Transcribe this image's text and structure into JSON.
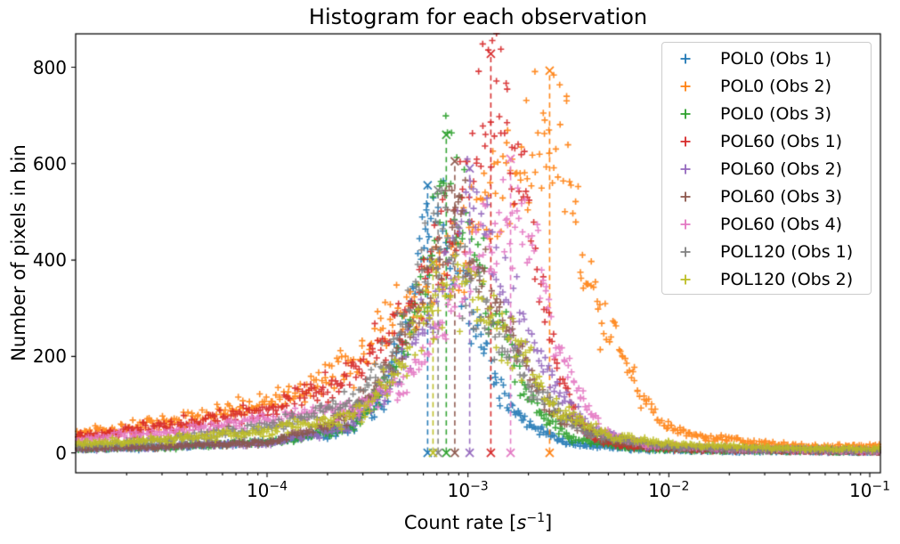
{
  "chart_data": {
    "type": "scatter",
    "title": "Histogram for each observation",
    "xlabel": "Count rate [s⁻¹]",
    "xlabel_parts": {
      "prefix": "Count rate [",
      "symbol": "s",
      "exponent": "−1",
      "suffix": "]"
    },
    "ylabel": "Number of pixels in bin",
    "x_scale": "log",
    "xlim": [
      1.115e-05,
      0.113
    ],
    "ylim": [
      -41.4,
      869.4
    ],
    "grid": false,
    "marker": "+",
    "legend_location": "upper right",
    "xticks": [
      {
        "base": "10",
        "exponent": "−4",
        "value": 0.0001
      },
      {
        "base": "10",
        "exponent": "−3",
        "value": 0.001
      },
      {
        "base": "10",
        "exponent": "−2",
        "value": 0.01
      },
      {
        "base": "10",
        "exponent": "−1",
        "value": 0.1
      }
    ],
    "yticks": [
      0,
      200,
      400,
      600,
      800
    ],
    "vline_note": "dashed vertical line per series marks the mode bin, with x markers at count 0 and at the peak bin count",
    "series": [
      {
        "name": "POL0 (Obs 1)",
        "color": "#1f77b4",
        "mode_count_rate": 0.00063,
        "peak_bin_count": 555,
        "envelope_log10x_vs_count": [
          [
            -4.95,
            8
          ],
          [
            -4.5,
            12
          ],
          [
            -4.0,
            22
          ],
          [
            -3.6,
            45
          ],
          [
            -3.42,
            110
          ],
          [
            -3.3,
            260
          ],
          [
            -3.21,
            500
          ],
          [
            -3.12,
            450
          ],
          [
            -3.0,
            330
          ],
          [
            -2.85,
            140
          ],
          [
            -2.7,
            55
          ],
          [
            -2.5,
            20
          ],
          [
            -2.2,
            8
          ],
          [
            -1.8,
            4
          ],
          [
            -0.95,
            2
          ]
        ]
      },
      {
        "name": "POL0 (Obs 2)",
        "color": "#ff7f0e",
        "mode_count_rate": 0.00255,
        "peak_bin_count": 793,
        "envelope_log10x_vs_count": [
          [
            -4.95,
            40
          ],
          [
            -4.5,
            62
          ],
          [
            -4.0,
            100
          ],
          [
            -3.55,
            195
          ],
          [
            -3.3,
            300
          ],
          [
            -3.0,
            430
          ],
          [
            -2.8,
            560
          ],
          [
            -2.62,
            645
          ],
          [
            -2.5,
            610
          ],
          [
            -2.44,
            400
          ],
          [
            -2.32,
            270
          ],
          [
            -2.23,
            190
          ],
          [
            -2.14,
            110
          ],
          [
            -2.05,
            70
          ],
          [
            -1.95,
            45
          ],
          [
            -1.85,
            32
          ],
          [
            -1.7,
            30
          ],
          [
            -1.55,
            20
          ],
          [
            -1.3,
            13
          ],
          [
            -0.95,
            13
          ]
        ]
      },
      {
        "name": "POL0 (Obs 3)",
        "color": "#2ca02c",
        "mode_count_rate": 0.00078,
        "peak_bin_count": 660,
        "envelope_log10x_vs_count": [
          [
            -4.95,
            8
          ],
          [
            -4.5,
            12
          ],
          [
            -4.0,
            22
          ],
          [
            -3.6,
            50
          ],
          [
            -3.4,
            140
          ],
          [
            -3.24,
            320
          ],
          [
            -3.11,
            580
          ],
          [
            -3.0,
            430
          ],
          [
            -2.9,
            320
          ],
          [
            -2.7,
            110
          ],
          [
            -2.5,
            30
          ],
          [
            -2.2,
            10
          ],
          [
            -1.8,
            5
          ],
          [
            -0.95,
            2
          ]
        ]
      },
      {
        "name": "POL60 (Obs 1)",
        "color": "#d62728",
        "mode_count_rate": 0.0013,
        "peak_bin_count": 828,
        "envelope_log10x_vs_count": [
          [
            -4.95,
            33
          ],
          [
            -4.5,
            55
          ],
          [
            -4.0,
            88
          ],
          [
            -3.55,
            165
          ],
          [
            -3.3,
            290
          ],
          [
            -3.1,
            430
          ],
          [
            -2.97,
            600
          ],
          [
            -2.89,
            740
          ],
          [
            -2.8,
            640
          ],
          [
            -2.68,
            450
          ],
          [
            -2.58,
            220
          ],
          [
            -2.47,
            90
          ],
          [
            -2.38,
            28
          ],
          [
            -2.2,
            14
          ],
          [
            -1.9,
            8
          ],
          [
            -1.5,
            5
          ],
          [
            -0.95,
            3
          ]
        ]
      },
      {
        "name": "POL60 (Obs 2)",
        "color": "#9467bd",
        "mode_count_rate": 0.00102,
        "peak_bin_count": 590,
        "envelope_log10x_vs_count": [
          [
            -4.95,
            8
          ],
          [
            -4.5,
            13
          ],
          [
            -4.0,
            20
          ],
          [
            -3.6,
            55
          ],
          [
            -3.35,
            160
          ],
          [
            -3.15,
            340
          ],
          [
            -2.99,
            520
          ],
          [
            -2.85,
            380
          ],
          [
            -2.7,
            240
          ],
          [
            -2.58,
            150
          ],
          [
            -2.4,
            50
          ],
          [
            -2.1,
            15
          ],
          [
            -1.7,
            7
          ],
          [
            -0.95,
            3
          ]
        ]
      },
      {
        "name": "POL60 (Obs 3)",
        "color": "#8c564b",
        "mode_count_rate": 0.00086,
        "peak_bin_count": 605,
        "envelope_log10x_vs_count": [
          [
            -4.95,
            8
          ],
          [
            -4.5,
            13
          ],
          [
            -4.0,
            22
          ],
          [
            -3.6,
            70
          ],
          [
            -3.35,
            200
          ],
          [
            -3.2,
            350
          ],
          [
            -3.07,
            530
          ],
          [
            -2.95,
            400
          ],
          [
            -2.85,
            295
          ],
          [
            -2.6,
            90
          ],
          [
            -2.3,
            25
          ],
          [
            -1.9,
            8
          ],
          [
            -0.95,
            3
          ]
        ]
      },
      {
        "name": "POL60 (Obs 4)",
        "color": "#e377c2",
        "mode_count_rate": 0.00163,
        "peak_bin_count": 610,
        "envelope_log10x_vs_count": [
          [
            -4.95,
            28
          ],
          [
            -4.5,
            42
          ],
          [
            -4.0,
            70
          ],
          [
            -3.55,
            95
          ],
          [
            -3.3,
            150
          ],
          [
            -3.1,
            280
          ],
          [
            -2.92,
            430
          ],
          [
            -2.79,
            480
          ],
          [
            -2.66,
            420
          ],
          [
            -2.58,
            256
          ],
          [
            -2.45,
            127
          ],
          [
            -2.32,
            40
          ],
          [
            -2.1,
            16
          ],
          [
            -1.7,
            9
          ],
          [
            -1.2,
            6
          ],
          [
            -0.95,
            5
          ]
        ]
      },
      {
        "name": "POL120 (Obs 1)",
        "color": "#7f7f7f",
        "mode_count_rate": 0.00071,
        "peak_bin_count": 545,
        "envelope_log10x_vs_count": [
          [
            -4.95,
            15
          ],
          [
            -4.5,
            25
          ],
          [
            -4.0,
            54
          ],
          [
            -3.55,
            110
          ],
          [
            -3.35,
            230
          ],
          [
            -3.15,
            480
          ],
          [
            -3.02,
            380
          ],
          [
            -2.88,
            260
          ],
          [
            -2.65,
            120
          ],
          [
            -2.4,
            40
          ],
          [
            -2.0,
            12
          ],
          [
            -1.7,
            10
          ],
          [
            -1.3,
            6
          ],
          [
            -0.95,
            5
          ]
        ]
      },
      {
        "name": "POL120 (Obs 2)",
        "color": "#bcbd22",
        "mode_count_rate": 0.00067,
        "peak_bin_count": 395,
        "envelope_log10x_vs_count": [
          [
            -4.95,
            18
          ],
          [
            -4.5,
            28
          ],
          [
            -4.0,
            45
          ],
          [
            -3.55,
            78
          ],
          [
            -3.35,
            170
          ],
          [
            -3.14,
            330
          ],
          [
            -3.02,
            355
          ],
          [
            -2.9,
            300
          ],
          [
            -2.75,
            215
          ],
          [
            -2.58,
            95
          ],
          [
            -2.3,
            35
          ],
          [
            -2.0,
            18
          ],
          [
            -1.75,
            14
          ],
          [
            -1.5,
            10
          ],
          [
            -1.2,
            8
          ],
          [
            -0.95,
            8
          ]
        ]
      }
    ]
  }
}
